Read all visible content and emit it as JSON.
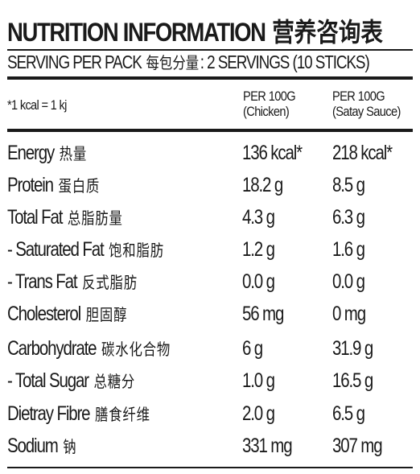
{
  "header": {
    "title_en": "NUTRITION INFORMATION",
    "title_cn": "营养咨询表",
    "serving_en_prefix": "SERVING PER PACK",
    "serving_cn": "每包分量",
    "serving_en_suffix": ": 2 SERVINGS (10 STICKS)"
  },
  "table": {
    "note": "*1 kcal = 1 kj",
    "columns": [
      {
        "line1": "PER 100G",
        "line2": "(Chicken)"
      },
      {
        "line1": "PER 100G",
        "line2": "(Satay Sauce)"
      }
    ],
    "rows": [
      {
        "label": "Energy",
        "label_cn": "热量",
        "chicken": "136 kcal*",
        "sauce": "218 kcal*"
      },
      {
        "label": "Protein",
        "label_cn": "蛋白质",
        "chicken": "18.2 g",
        "sauce": "8.5 g"
      },
      {
        "label": "Total Fat",
        "label_cn": "总脂肪量",
        "chicken": "4.3 g",
        "sauce": "6.3 g"
      },
      {
        "label": "- Saturated Fat",
        "label_cn": "饱和脂肪",
        "chicken": "1.2 g",
        "sauce": "1.6 g"
      },
      {
        "label": "- Trans Fat",
        "label_cn": "反式脂肪",
        "chicken": "0.0 g",
        "sauce": "0.0 g"
      },
      {
        "label": "Cholesterol",
        "label_cn": "胆固醇",
        "chicken": "56 mg",
        "sauce": "0 mg"
      },
      {
        "label": "Carbohydrate",
        "label_cn": "碳水化合物",
        "chicken": "6 g",
        "sauce": "31.9 g"
      },
      {
        "label": "- Total Sugar",
        "label_cn": "总糖分",
        "chicken": "1.0 g",
        "sauce": "16.5 g"
      },
      {
        "label": "Dietray Fibre",
        "label_cn": "膳食纤维",
        "chicken": "2.0 g",
        "sauce": "6.5 g"
      },
      {
        "label": "Sodium",
        "label_cn": "钠",
        "chicken": "331 mg",
        "sauce": "307 mg"
      }
    ]
  }
}
